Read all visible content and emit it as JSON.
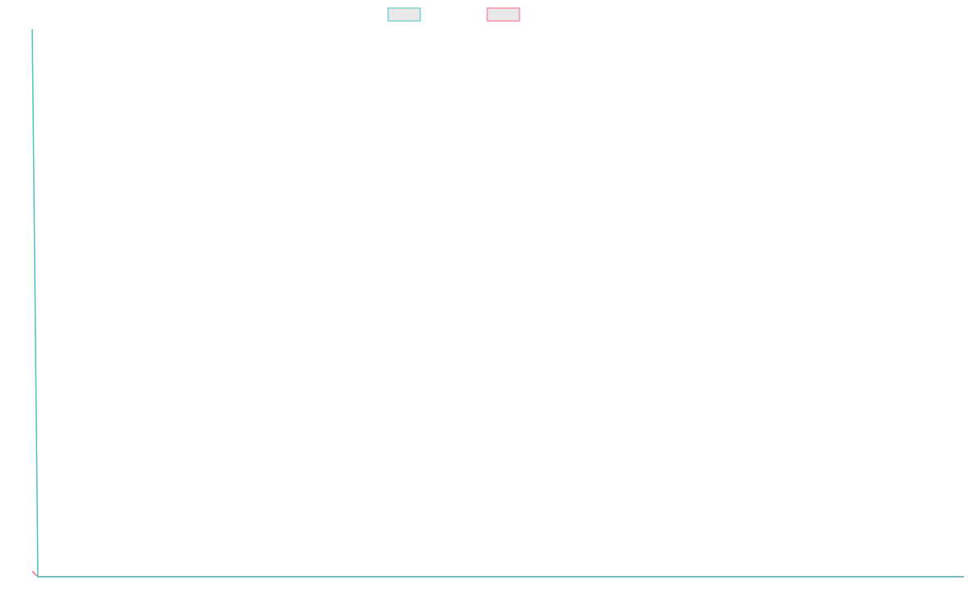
{
  "chart_data": {
    "type": "line",
    "x": [
      0,
      1,
      165
    ],
    "xlim": [
      0,
      165
    ],
    "ylim": [
      0,
      100
    ],
    "series": [
      {
        "color": "#4bc0c0",
        "values": [
          100,
          0,
          0
        ]
      },
      {
        "color": "#ff6384",
        "values": [
          1,
          0,
          0
        ]
      }
    ]
  }
}
